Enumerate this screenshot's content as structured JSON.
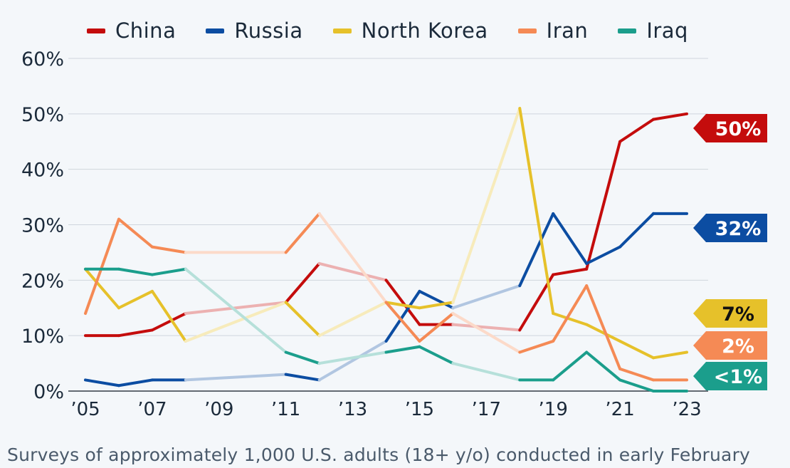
{
  "chart_data": {
    "type": "line",
    "title": "",
    "xlabel": "",
    "ylabel": "",
    "ylim": [
      0,
      60
    ],
    "y_ticks": [
      "0%",
      "10%",
      "20%",
      "30%",
      "40%",
      "50%",
      "60%"
    ],
    "x_ticks": [
      {
        "year": 2005,
        "label": "’05"
      },
      {
        "year": 2007,
        "label": "’07"
      },
      {
        "year": 2009,
        "label": "’09"
      },
      {
        "year": 2011,
        "label": "’11"
      },
      {
        "year": 2013,
        "label": "’13"
      },
      {
        "year": 2015,
        "label": "’15"
      },
      {
        "year": 2017,
        "label": "’17"
      },
      {
        "year": 2019,
        "label": "’19"
      },
      {
        "year": 2021,
        "label": "’21"
      },
      {
        "year": 2023,
        "label": "’23"
      }
    ],
    "series": [
      {
        "name": "China",
        "color": "#c40c0c",
        "end_label": "50%",
        "label_text_color": "#ffffff",
        "points": [
          [
            2005,
            10
          ],
          [
            2006,
            10
          ],
          [
            2007,
            11
          ],
          [
            2008,
            14
          ],
          [
            2011,
            16
          ],
          [
            2012,
            23
          ],
          [
            2014,
            20
          ],
          [
            2015,
            12
          ],
          [
            2016,
            12
          ],
          [
            2018,
            11
          ],
          [
            2019,
            21
          ],
          [
            2020,
            22
          ],
          [
            2021,
            45
          ],
          [
            2022,
            49
          ],
          [
            2023,
            50
          ]
        ]
      },
      {
        "name": "Russia",
        "color": "#0c4da2",
        "end_label": "32%",
        "label_text_color": "#ffffff",
        "points": [
          [
            2005,
            2
          ],
          [
            2006,
            1
          ],
          [
            2007,
            2
          ],
          [
            2008,
            2
          ],
          [
            2011,
            3
          ],
          [
            2012,
            2
          ],
          [
            2014,
            9
          ],
          [
            2015,
            18
          ],
          [
            2016,
            15
          ],
          [
            2018,
            19
          ],
          [
            2019,
            32
          ],
          [
            2020,
            23
          ],
          [
            2021,
            26
          ],
          [
            2022,
            32
          ],
          [
            2023,
            32
          ]
        ]
      },
      {
        "name": "North Korea",
        "color": "#e6c12a",
        "end_label": "7%",
        "label_text_color": "#111111",
        "points": [
          [
            2005,
            22
          ],
          [
            2006,
            15
          ],
          [
            2007,
            18
          ],
          [
            2008,
            9
          ],
          [
            2011,
            16
          ],
          [
            2012,
            10
          ],
          [
            2014,
            16
          ],
          [
            2015,
            15
          ],
          [
            2016,
            16
          ],
          [
            2018,
            51
          ],
          [
            2019,
            14
          ],
          [
            2020,
            12
          ],
          [
            2021,
            9
          ],
          [
            2022,
            6
          ],
          [
            2023,
            7
          ]
        ]
      },
      {
        "name": "Iran",
        "color": "#f58a55",
        "end_label": "2%",
        "label_text_color": "#ffffff",
        "points": [
          [
            2005,
            14
          ],
          [
            2006,
            31
          ],
          [
            2007,
            26
          ],
          [
            2008,
            25
          ],
          [
            2011,
            25
          ],
          [
            2012,
            32
          ],
          [
            2014,
            16
          ],
          [
            2015,
            9
          ],
          [
            2016,
            14
          ],
          [
            2018,
            7
          ],
          [
            2019,
            9
          ],
          [
            2020,
            19
          ],
          [
            2021,
            4
          ],
          [
            2022,
            2
          ],
          [
            2023,
            2
          ]
        ]
      },
      {
        "name": "Iraq",
        "color": "#1b9e8c",
        "end_label": "<1%",
        "label_text_color": "#ffffff",
        "points": [
          [
            2005,
            22
          ],
          [
            2006,
            22
          ],
          [
            2007,
            21
          ],
          [
            2008,
            22
          ],
          [
            2011,
            7
          ],
          [
            2012,
            5
          ],
          [
            2014,
            7
          ],
          [
            2015,
            8
          ],
          [
            2016,
            5
          ],
          [
            2018,
            2
          ],
          [
            2019,
            2
          ],
          [
            2020,
            7
          ],
          [
            2021,
            2
          ],
          [
            2022,
            0
          ],
          [
            2023,
            0
          ]
        ]
      }
    ],
    "footnote": "Surveys of approximately 1,000 U.S. adults (18+ y/o) conducted in early February"
  }
}
